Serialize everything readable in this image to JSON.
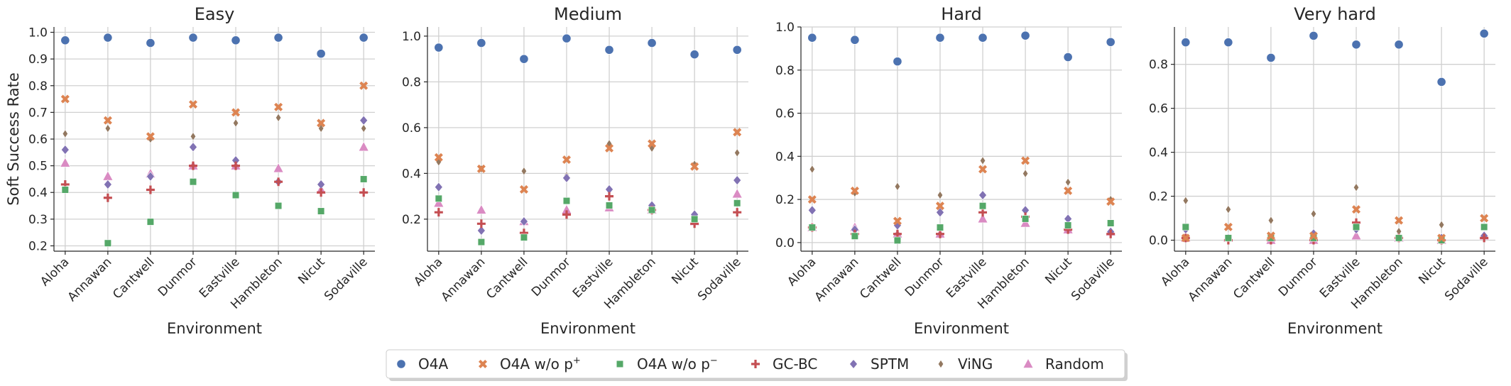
{
  "chart_data": {
    "type": "scatter",
    "xlabel": "Environment",
    "ylabel": "Soft Success Rate",
    "categories": [
      "Aloha",
      "Annawan",
      "Cantwell",
      "Dunmor",
      "Eastville",
      "Hambleton",
      "Nicut",
      "Sodaville"
    ],
    "grid": true,
    "legend_position": "bottom-center",
    "series_styles": [
      {
        "name": "O4A",
        "label_main": "O4A",
        "label_sup": "",
        "color": "#4c72b0",
        "marker": "circle"
      },
      {
        "name": "O4A w/o p+",
        "label_main": "O4A w/o p",
        "label_sup": "+",
        "color": "#dd8452",
        "marker": "x"
      },
      {
        "name": "O4A w/o p−",
        "label_main": "O4A w/o p",
        "label_sup": "−",
        "color": "#55a868",
        "marker": "square"
      },
      {
        "name": "GC-BC",
        "label_main": "GC-BC",
        "label_sup": "",
        "color": "#c44e52",
        "marker": "plus"
      },
      {
        "name": "SPTM",
        "label_main": "SPTM",
        "label_sup": "",
        "color": "#8172b3",
        "marker": "diamond"
      },
      {
        "name": "ViNG",
        "label_main": "ViNG",
        "label_sup": "",
        "color": "#937860",
        "marker": "thin-diamond"
      },
      {
        "name": "Random",
        "label_main": "Random",
        "label_sup": "",
        "color": "#da8bc3",
        "marker": "triangle"
      }
    ],
    "panels": [
      {
        "title": "Easy",
        "ylim": [
          0.18,
          1.02
        ],
        "yticks": [
          0.2,
          0.3,
          0.4,
          0.5,
          0.6,
          0.7,
          0.8,
          0.9,
          1.0
        ],
        "ytick_labels": [
          "0.2",
          "0.3",
          "0.4",
          "0.5",
          "0.6",
          "0.7",
          "0.8",
          "0.9",
          "1.0"
        ],
        "series": [
          {
            "name": "O4A",
            "values": [
              0.97,
              0.98,
              0.96,
              0.98,
              0.97,
              0.98,
              0.92,
              0.98
            ]
          },
          {
            "name": "O4A w/o p+",
            "values": [
              0.75,
              0.67,
              0.61,
              0.73,
              0.7,
              0.72,
              0.66,
              0.8
            ]
          },
          {
            "name": "O4A w/o p−",
            "values": [
              0.41,
              0.21,
              0.29,
              0.44,
              0.39,
              0.35,
              0.33,
              0.45
            ]
          },
          {
            "name": "GC-BC",
            "values": [
              0.43,
              0.38,
              0.41,
              0.5,
              0.5,
              0.44,
              0.4,
              0.4
            ]
          },
          {
            "name": "SPTM",
            "values": [
              0.56,
              0.43,
              0.46,
              0.57,
              0.52,
              0.44,
              0.43,
              0.67
            ]
          },
          {
            "name": "ViNG",
            "values": [
              0.62,
              0.64,
              0.6,
              0.61,
              0.66,
              0.68,
              0.64,
              0.64
            ]
          },
          {
            "name": "Random",
            "values": [
              0.51,
              0.46,
              0.47,
              0.5,
              0.5,
              0.49,
              0.41,
              0.57
            ]
          }
        ]
      },
      {
        "title": "Medium",
        "ylim": [
          0.06,
          1.04
        ],
        "yticks": [
          0.2,
          0.4,
          0.6,
          0.8,
          1.0
        ],
        "ytick_labels": [
          "0.2",
          "0.4",
          "0.6",
          "0.8",
          "1.0"
        ],
        "series": [
          {
            "name": "O4A",
            "values": [
              0.95,
              0.97,
              0.9,
              0.99,
              0.94,
              0.97,
              0.92,
              0.94
            ]
          },
          {
            "name": "O4A w/o p+",
            "values": [
              0.47,
              0.42,
              0.33,
              0.46,
              0.51,
              0.53,
              0.43,
              0.58
            ]
          },
          {
            "name": "O4A w/o p−",
            "values": [
              0.29,
              0.1,
              0.12,
              0.28,
              0.26,
              0.24,
              0.2,
              0.27
            ]
          },
          {
            "name": "GC-BC",
            "values": [
              0.23,
              0.18,
              0.14,
              0.22,
              0.3,
              0.24,
              0.18,
              0.23
            ]
          },
          {
            "name": "SPTM",
            "values": [
              0.34,
              0.15,
              0.19,
              0.38,
              0.33,
              0.26,
              0.22,
              0.37
            ]
          },
          {
            "name": "ViNG",
            "values": [
              0.45,
              0.42,
              0.41,
              0.39,
              0.53,
              0.51,
              0.44,
              0.49
            ]
          },
          {
            "name": "Random",
            "values": [
              0.27,
              0.24,
              0.19,
              0.24,
              0.25,
              0.24,
              0.19,
              0.31
            ]
          }
        ]
      },
      {
        "title": "Hard",
        "ylim": [
          -0.04,
          1.0
        ],
        "yticks": [
          0.0,
          0.2,
          0.4,
          0.6,
          0.8,
          1.0
        ],
        "ytick_labels": [
          "0.0",
          "0.2",
          "0.4",
          "0.6",
          "0.8",
          "1.0"
        ],
        "series": [
          {
            "name": "O4A",
            "values": [
              0.95,
              0.94,
              0.84,
              0.95,
              0.95,
              0.96,
              0.86,
              0.93
            ]
          },
          {
            "name": "O4A w/o p+",
            "values": [
              0.2,
              0.24,
              0.1,
              0.17,
              0.34,
              0.38,
              0.24,
              0.19
            ]
          },
          {
            "name": "O4A w/o p−",
            "values": [
              0.07,
              0.03,
              0.01,
              0.07,
              0.17,
              0.11,
              0.08,
              0.09
            ]
          },
          {
            "name": "GC-BC",
            "values": [
              0.07,
              0.04,
              0.04,
              0.04,
              0.14,
              0.12,
              0.06,
              0.04
            ]
          },
          {
            "name": "SPTM",
            "values": [
              0.15,
              0.06,
              0.08,
              0.14,
              0.22,
              0.15,
              0.11,
              0.05
            ]
          },
          {
            "name": "ViNG",
            "values": [
              0.34,
              0.23,
              0.26,
              0.22,
              0.38,
              0.32,
              0.28,
              0.2
            ]
          },
          {
            "name": "Random",
            "values": [
              0.07,
              0.07,
              0.04,
              0.04,
              0.11,
              0.09,
              0.06,
              0.05
            ]
          }
        ]
      },
      {
        "title": "Very hard",
        "ylim": [
          -0.05,
          0.97
        ],
        "yticks": [
          0.0,
          0.2,
          0.4,
          0.6,
          0.8
        ],
        "ytick_labels": [
          "0.0",
          "0.2",
          "0.4",
          "0.6",
          "0.8"
        ],
        "series": [
          {
            "name": "O4A",
            "values": [
              0.9,
              0.9,
              0.83,
              0.93,
              0.89,
              0.89,
              0.72,
              0.94
            ]
          },
          {
            "name": "O4A w/o p+",
            "values": [
              0.01,
              0.06,
              0.02,
              0.02,
              0.14,
              0.09,
              0.01,
              0.1
            ]
          },
          {
            "name": "O4A w/o p−",
            "values": [
              0.06,
              0.01,
              0.01,
              0.01,
              0.06,
              0.01,
              0.0,
              0.06
            ]
          },
          {
            "name": "GC-BC",
            "values": [
              0.01,
              0.0,
              0.0,
              0.0,
              0.08,
              0.01,
              0.0,
              0.01
            ]
          },
          {
            "name": "SPTM",
            "values": [
              0.05,
              0.01,
              0.01,
              0.03,
              0.05,
              0.01,
              0.01,
              0.02
            ]
          },
          {
            "name": "ViNG",
            "values": [
              0.18,
              0.14,
              0.09,
              0.12,
              0.24,
              0.04,
              0.07,
              0.06
            ]
          },
          {
            "name": "Random",
            "values": [
              0.01,
              0.01,
              0.0,
              0.0,
              0.02,
              0.01,
              0.0,
              0.02
            ]
          }
        ]
      }
    ]
  }
}
